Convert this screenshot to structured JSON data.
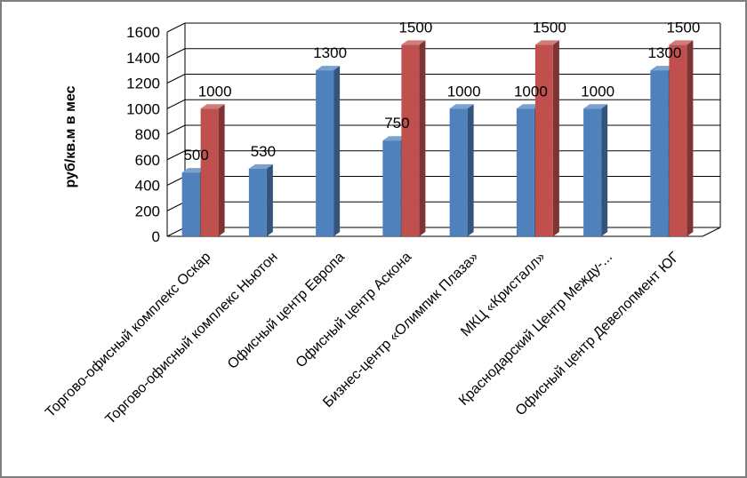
{
  "chart_data": {
    "type": "bar",
    "title": "",
    "xlabel": "",
    "ylabel": "руб/кв.м в мес",
    "ylim": [
      0,
      1600
    ],
    "yticks": [
      0,
      200,
      400,
      600,
      800,
      1000,
      1200,
      1400,
      1600
    ],
    "grid": true,
    "legend": "none",
    "categories": [
      "Торгово-офисный комплекс Оскар",
      "Торгово-офисный комплекс Ньютон",
      "Офисный центр Европа",
      "Офисный центр Аскона",
      "Бизнес-центр «Олимпик Плаза»",
      "МКЦ «Кристалл»",
      "Краснодарский Центр Между-...",
      "Офисный центр Девелопмент ЮГ"
    ],
    "series": [
      {
        "color": "#4f81bd",
        "values": [
          500,
          530,
          1300,
          750,
          1000,
          1000,
          1000,
          1300
        ]
      },
      {
        "color": "#c0504d",
        "values": [
          1000,
          null,
          null,
          1500,
          null,
          1500,
          null,
          1500
        ]
      }
    ]
  }
}
